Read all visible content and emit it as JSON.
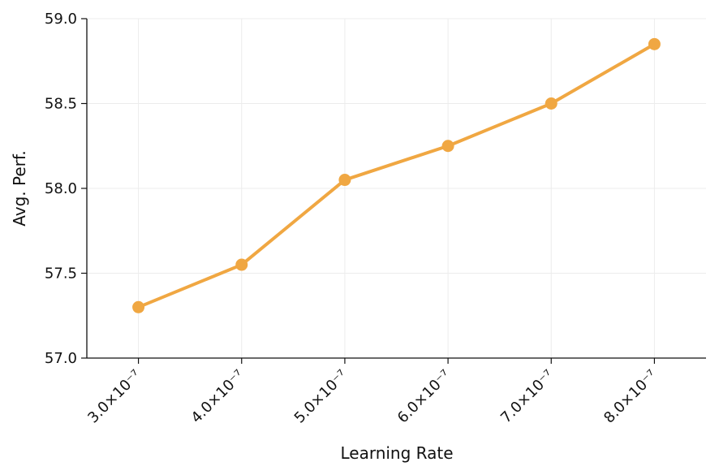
{
  "chart_data": {
    "type": "line",
    "x": [
      3e-07,
      4e-07,
      5e-07,
      6e-07,
      7e-07,
      8e-07
    ],
    "series": [
      {
        "name": "Avg. Perf.",
        "color": "#f0a742",
        "values": [
          57.3,
          57.55,
          58.05,
          58.25,
          58.5,
          58.85
        ]
      }
    ],
    "xlabel": "Learning Rate",
    "ylabel": "Avg. Perf.",
    "xlim": [
      2.5e-07,
      8.5e-07
    ],
    "xticks": [
      {
        "value": 3e-07,
        "label": "3.0×10⁻⁷"
      },
      {
        "value": 4e-07,
        "label": "4.0×10⁻⁷"
      },
      {
        "value": 5e-07,
        "label": "5.0×10⁻⁷"
      },
      {
        "value": 6e-07,
        "label": "6.0×10⁻⁷"
      },
      {
        "value": 7e-07,
        "label": "7.0×10⁻⁷"
      },
      {
        "value": 8e-07,
        "label": "8.0×10⁻⁷"
      }
    ],
    "ylim": [
      57,
      59
    ],
    "yticks": [
      {
        "value": 57,
        "label": "57.0"
      },
      57.5,
      {
        "value": 58,
        "label": "58.0"
      },
      58.5,
      {
        "value": 59,
        "label": "59.0"
      }
    ],
    "grid": true
  }
}
